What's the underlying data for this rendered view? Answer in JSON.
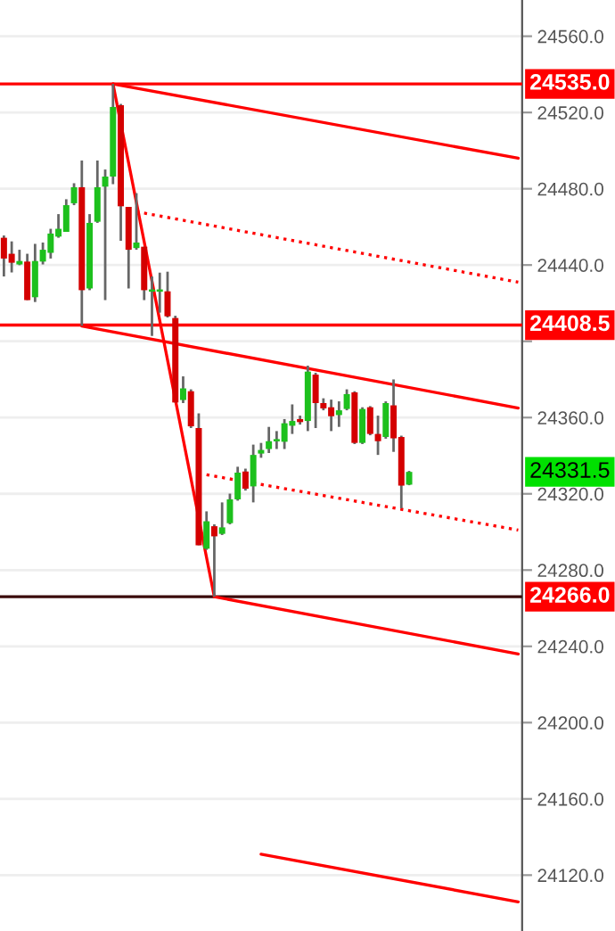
{
  "chart_data": {
    "type": "candlestick",
    "categories": [
      null,
      null,
      null,
      null,
      null,
      null,
      null,
      null,
      null,
      null,
      null,
      null,
      null,
      null,
      null,
      null,
      null,
      null,
      null,
      null,
      null,
      null,
      null,
      null,
      null,
      null,
      null,
      null,
      null,
      null,
      null,
      null,
      null,
      null,
      null,
      null,
      null,
      null,
      null,
      null,
      null,
      null,
      null,
      null,
      null,
      null,
      null,
      null,
      null,
      null,
      null,
      null,
      null,
      null,
      null,
      null,
      null,
      null,
      null,
      null,
      null,
      null,
      null,
      null,
      null,
      null,
      null
    ],
    "ohlc": [
      [
        24454.3,
        24455.5,
        24434.0,
        24443.4
      ],
      [
        24445.9,
        24452.4,
        24436.1,
        24441.2
      ],
      [
        24440.3,
        24448.0,
        24439.9,
        24442.1
      ],
      [
        24441.8,
        24445.9,
        24421.6,
        24421.6
      ],
      [
        24423.1,
        24451.1,
        24420.6,
        24442.1
      ],
      [
        24441.8,
        24451.8,
        24440.3,
        24448.0
      ],
      [
        24446.4,
        24459.0,
        24443.4,
        24456.5
      ],
      [
        24454.9,
        24466.7,
        24454.3,
        24459.0
      ],
      [
        24457.4,
        24474.5,
        24457.4,
        24471.4
      ],
      [
        24472.4,
        24482.9,
        24471.4,
        24480.8
      ],
      [
        24480.8,
        24494.8,
        24408.1,
        24426.8
      ],
      [
        24427.7,
        24466.7,
        24426.8,
        24462.1
      ],
      [
        24462.7,
        24494.8,
        24462.1,
        24480.8
      ],
      [
        24481.1,
        24490.1,
        24421.6,
        24486.4
      ],
      [
        24486.4,
        24535.0,
        24482.4,
        24522.9
      ],
      [
        24523.8,
        24524.5,
        24452.7,
        24470.8
      ],
      [
        24470.5,
        24470.5,
        24427.7,
        24448.0
      ],
      [
        24448.9,
        24477.7,
        24448.0,
        24451.8
      ],
      [
        24449.6,
        24449.6,
        24421.6,
        24426.8
      ],
      [
        24426.0,
        24434.0,
        24402.8,
        24426.5
      ],
      [
        24426.0,
        24436.0,
        24415.0,
        24426.5
      ],
      [
        24426.2,
        24436.5,
        24412.5,
        24413.1
      ],
      [
        24412.2,
        24413.4,
        24367.9,
        24367.9
      ],
      [
        24369.2,
        24381.6,
        24367.6,
        24375.3
      ],
      [
        24373.8,
        24374.8,
        24354.5,
        24355.4
      ],
      [
        24354.5,
        24362.2,
        24293.0,
        24293.0
      ],
      [
        24291.2,
        24310.8,
        24290.6,
        24305.6
      ],
      [
        24303.0,
        24304.0,
        24266.0,
        24297.7
      ],
      [
        24299.0,
        24315.5,
        24298.4,
        24302.4
      ],
      [
        24304.6,
        24320.1,
        24304.0,
        24317.1
      ],
      [
        24317.1,
        24334.2,
        24316.4,
        24331.1
      ],
      [
        24331.7,
        24333.2,
        24321.7,
        24322.7
      ],
      [
        24323.9,
        24345.8,
        24315.5,
        24340.4
      ],
      [
        24341.1,
        24346.7,
        24338.9,
        24343.0
      ],
      [
        24343.5,
        24355.1,
        24341.4,
        24347.6
      ],
      [
        24347.5,
        24352.9,
        24343.5,
        24347.9
      ],
      [
        24347.3,
        24359.2,
        24343.5,
        24357.0
      ],
      [
        24355.7,
        24366.9,
        24351.4,
        24358.2
      ],
      [
        24359.2,
        24361.0,
        24356.3,
        24357.6
      ],
      [
        24358.2,
        24387.2,
        24352.9,
        24384.1
      ],
      [
        24382.5,
        24383.5,
        24354.5,
        24367.6
      ],
      [
        24367.6,
        24370.1,
        24363.8,
        24364.8
      ],
      [
        24365.4,
        24369.4,
        24352.9,
        24360.7
      ],
      [
        24361.3,
        24368.5,
        24355.1,
        24363.8
      ],
      [
        24364.5,
        24374.8,
        24363.8,
        24372.3
      ],
      [
        24373.2,
        24373.8,
        24346.1,
        24346.7
      ],
      [
        24346.7,
        24365.4,
        24346.1,
        24364.5
      ],
      [
        24365.4,
        24366.0,
        24350.7,
        24351.4
      ],
      [
        24351.4,
        24361.0,
        24340.4,
        24347.6
      ],
      [
        24349.8,
        24368.5,
        24348.9,
        24367.6
      ],
      [
        24366.4,
        24380.0,
        24342.0,
        24349.1
      ],
      [
        24349.8,
        24350.5,
        24312.4,
        24324.3
      ],
      [
        24324.8,
        24332.0,
        24324.5,
        24331.5
      ],
      null,
      null,
      null,
      null,
      null,
      null,
      null,
      null,
      null,
      null,
      null,
      null,
      null,
      null
    ],
    "colors": [
      "#d40000",
      "#d40000",
      "#1dc01d",
      "#d40000",
      "#1dc01d",
      "#1dc01d",
      "#1dc01d",
      "#1dc01d",
      "#1dc01d",
      "#1dc01d",
      "#d40000",
      "#1dc01d",
      "#1dc01d",
      "#1dc01d",
      "#1dc01d",
      "#d40000",
      "#d40000",
      "#1dc01d",
      "#d40000",
      "#1dc01d",
      "#1dc01d",
      "#d40000",
      "#d40000",
      "#1dc01d",
      "#d40000",
      "#d40000",
      "#1dc01d",
      "#d40000",
      "#1dc01d",
      "#1dc01d",
      "#1dc01d",
      "#d40000",
      "#1dc01d",
      "#1dc01d",
      "#1dc01d",
      "#1dc01d",
      "#1dc01d",
      "#1dc01d",
      "#d40000",
      "#1dc01d",
      "#d40000",
      "#d40000",
      "#d40000",
      "#1dc01d",
      "#1dc01d",
      "#d40000",
      "#1dc01d",
      "#d40000",
      "#d40000",
      "#1dc01d",
      "#d40000",
      "#d40000",
      "#1dc01d",
      null,
      null,
      null,
      null,
      null,
      null,
      null,
      null,
      null,
      null,
      null,
      null,
      null,
      null
    ],
    "series": [
      {
        "type": "line",
        "values": [
          null,
          null,
          null,
          null,
          null,
          null,
          null,
          null,
          null,
          null,
          null,
          null,
          null,
          null,
          24535,
          null,
          null,
          null,
          null,
          null,
          null,
          null,
          null,
          null,
          null,
          null,
          null,
          null,
          null,
          null,
          null,
          null,
          null,
          null,
          null,
          null,
          null,
          null,
          null,
          null,
          null,
          null,
          null,
          null,
          null,
          null,
          null,
          null,
          null,
          null,
          null,
          null,
          null,
          null,
          null,
          null,
          null,
          null,
          null,
          null,
          null,
          null,
          null,
          null,
          null,
          null,
          24496
        ],
        "color": "#ff0000",
        "line_style": "solid"
      },
      {
        "type": "line",
        "values": [
          null,
          null,
          null,
          null,
          null,
          null,
          null,
          null,
          null,
          null,
          null,
          null,
          null,
          null,
          null,
          null,
          null,
          24468,
          null,
          null,
          null,
          null,
          null,
          null,
          null,
          null,
          null,
          null,
          null,
          null,
          null,
          null,
          null,
          null,
          null,
          null,
          null,
          null,
          null,
          null,
          null,
          null,
          null,
          null,
          null,
          null,
          null,
          null,
          null,
          null,
          null,
          null,
          null,
          null,
          null,
          null,
          null,
          null,
          null,
          null,
          null,
          null,
          null,
          null,
          null,
          null,
          24431
        ],
        "color": "#ff0000",
        "line_style": "dotted"
      },
      {
        "type": "line",
        "values": [
          null,
          null,
          null,
          null,
          null,
          null,
          null,
          null,
          null,
          null,
          24408,
          null,
          null,
          null,
          null,
          null,
          null,
          null,
          null,
          null,
          null,
          null,
          null,
          null,
          null,
          null,
          null,
          null,
          null,
          null,
          null,
          null,
          null,
          null,
          null,
          null,
          null,
          null,
          null,
          null,
          null,
          null,
          null,
          null,
          null,
          null,
          null,
          null,
          null,
          null,
          null,
          null,
          null,
          null,
          null,
          null,
          null,
          null,
          null,
          null,
          null,
          null,
          null,
          null,
          null,
          null,
          24365
        ],
        "color": "#ff0000",
        "line_style": "solid"
      },
      {
        "type": "line",
        "values": [
          null,
          null,
          null,
          null,
          null,
          null,
          null,
          null,
          null,
          null,
          null,
          null,
          null,
          null,
          24535,
          null,
          null,
          null,
          null,
          null,
          null,
          null,
          null,
          null,
          null,
          null,
          null,
          24266,
          null,
          null,
          null,
          null,
          null,
          null,
          null,
          null,
          null,
          null,
          null,
          null,
          null,
          null,
          null,
          null,
          null,
          null,
          null,
          null,
          null,
          null,
          null,
          null,
          null,
          null,
          null,
          null,
          null,
          null,
          null,
          null,
          null,
          null,
          null,
          null,
          null,
          null,
          null
        ],
        "color": "#ff0000",
        "line_style": "solid"
      },
      {
        "type": "line",
        "values": [
          null,
          null,
          null,
          null,
          null,
          null,
          null,
          null,
          null,
          null,
          null,
          null,
          null,
          null,
          null,
          null,
          null,
          null,
          null,
          null,
          null,
          null,
          null,
          null,
          null,
          null,
          null,
          24266,
          null,
          null,
          null,
          null,
          null,
          null,
          null,
          null,
          null,
          null,
          null,
          null,
          null,
          null,
          null,
          null,
          null,
          null,
          null,
          null,
          null,
          null,
          null,
          null,
          null,
          null,
          null,
          null,
          null,
          null,
          null,
          null,
          null,
          null,
          null,
          null,
          null,
          null,
          24236
        ],
        "color": "#ff0000",
        "line_style": "solid"
      },
      {
        "type": "line",
        "values": [
          null,
          null,
          null,
          null,
          null,
          null,
          null,
          null,
          null,
          null,
          null,
          null,
          null,
          null,
          null,
          null,
          null,
          null,
          null,
          null,
          null,
          null,
          null,
          null,
          null,
          null,
          24330,
          null,
          null,
          null,
          null,
          null,
          null,
          null,
          null,
          null,
          null,
          null,
          null,
          null,
          null,
          null,
          null,
          null,
          null,
          null,
          null,
          null,
          null,
          null,
          null,
          null,
          null,
          null,
          null,
          null,
          null,
          null,
          null,
          null,
          null,
          null,
          null,
          null,
          null,
          null,
          24301
        ],
        "color": "#ff0000",
        "line_style": "dotted"
      },
      {
        "type": "line",
        "values": [
          null,
          null,
          null,
          null,
          null,
          null,
          null,
          null,
          null,
          null,
          null,
          null,
          null,
          null,
          null,
          null,
          null,
          null,
          null,
          null,
          null,
          null,
          null,
          null,
          null,
          null,
          null,
          null,
          null,
          null,
          null,
          null,
          null,
          24131,
          null,
          null,
          null,
          null,
          null,
          null,
          null,
          null,
          null,
          null,
          null,
          null,
          null,
          null,
          null,
          null,
          null,
          null,
          null,
          null,
          null,
          null,
          null,
          null,
          null,
          null,
          null,
          null,
          null,
          null,
          null,
          null,
          24106
        ],
        "color": "#ff0000",
        "line_style": "solid"
      }
    ],
    "ref_lines": [
      {
        "axis": "y",
        "value": 24535.0,
        "label": "24535.0",
        "color": "#ff0000"
      },
      {
        "axis": "y",
        "value": 24408.5,
        "label": "24408.5",
        "color": "#ff0000"
      },
      {
        "axis": "y",
        "value": 24266.0,
        "label": "24266.0",
        "color": "#3a0a0a"
      }
    ],
    "annotations": [
      "24331.5"
    ],
    "ylim": [
      24090.7,
      24579.0
    ],
    "yticks": [
      {
        "value": 24120,
        "label": "24120.0"
      },
      {
        "value": 24160,
        "label": "24160.0"
      },
      {
        "value": 24200,
        "label": "24200.0"
      },
      {
        "value": 24240,
        "label": "24240.0"
      },
      {
        "value": 24280,
        "label": "24280.0"
      },
      {
        "value": 24320,
        "label": "24320.0"
      },
      {
        "value": 24360,
        "label": "24360.0"
      },
      {
        "value": 24400,
        "label": null
      },
      {
        "value": 24440,
        "label": "24440.0"
      },
      {
        "value": 24480,
        "label": "24480.0"
      },
      {
        "value": 24520,
        "label": "24520.0"
      },
      {
        "value": 24560,
        "label": "24560.0"
      }
    ],
    "tick_labels": "y",
    "grid": "y"
  }
}
